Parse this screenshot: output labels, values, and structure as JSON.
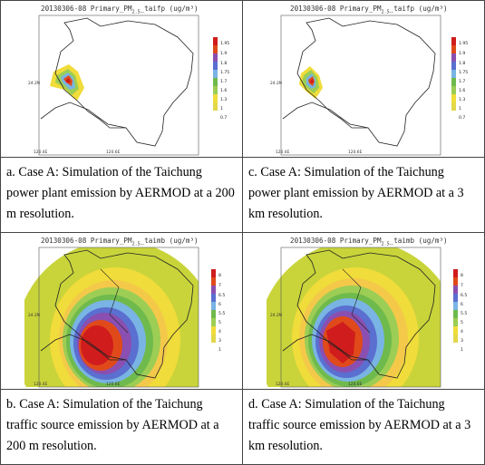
{
  "panels": [
    {
      "title": "20130306-08 Primary_PM",
      "subscript": "2.5",
      "suffix": "_taifp (ug/m³)",
      "lat_label": "24.2N",
      "lon_left": "120.4E",
      "lon_right": "120.6E",
      "colorbar": [
        "1.95",
        "1.9",
        "1.8",
        "1.75",
        "1.7",
        "1.6",
        "1.3",
        "1",
        "0.7"
      ],
      "caption": "a. Case A: Simulation of the Taichung power plant emission by AERMOD at a 200 m resolution."
    },
    {
      "title": "20130306-08 Primary_PM",
      "subscript": "2.5",
      "suffix": "_taifp (ug/m³)",
      "lat_label": "24.2N",
      "lon_left": "120.4E",
      "lon_right": "120.6E",
      "colorbar": [
        "1.95",
        "1.9",
        "1.8",
        "1.75",
        "1.7",
        "1.6",
        "1.3",
        "1",
        "0.7"
      ],
      "caption": "c. Case A: Simulation of the Taichung power plant emission by AERMOD at a 3 km resolution."
    },
    {
      "title": "20130306-08 Primary_PM",
      "subscript": "2.5",
      "suffix": "_taimb (ug/m³)",
      "lat_label": "24.2N",
      "lon_left": "120.4E",
      "lon_right": "120.6E",
      "colorbar": [
        "8",
        "7",
        "6.5",
        "6",
        "5.5",
        "5",
        "4",
        "3",
        "1"
      ],
      "caption": "b. Case A: Simulation of the Taichung traffic source emission by AERMOD at a 200 m resolution."
    },
    {
      "title": "20130306-08 Primary_PM",
      "subscript": "2.5",
      "suffix": "_taimb (ug/m³)",
      "lat_label": "24.2N",
      "lon_left": "120.4E",
      "lon_right": "120.6E",
      "colorbar": [
        "8",
        "7",
        "6.5",
        "6",
        "5.5",
        "5",
        "4",
        "3",
        "1"
      ],
      "caption": "d. Case A: Simulation of the Taichung traffic source emission by AERMOD at a 3 km resolution."
    }
  ],
  "colors": {
    "levels": [
      "#d01c1c",
      "#e04a1a",
      "#8a4fb0",
      "#5a6fd0",
      "#79b4e4",
      "#6fba4c",
      "#9ccd55",
      "#f0dc3a",
      "#e2d84a"
    ],
    "border": "#444444"
  }
}
